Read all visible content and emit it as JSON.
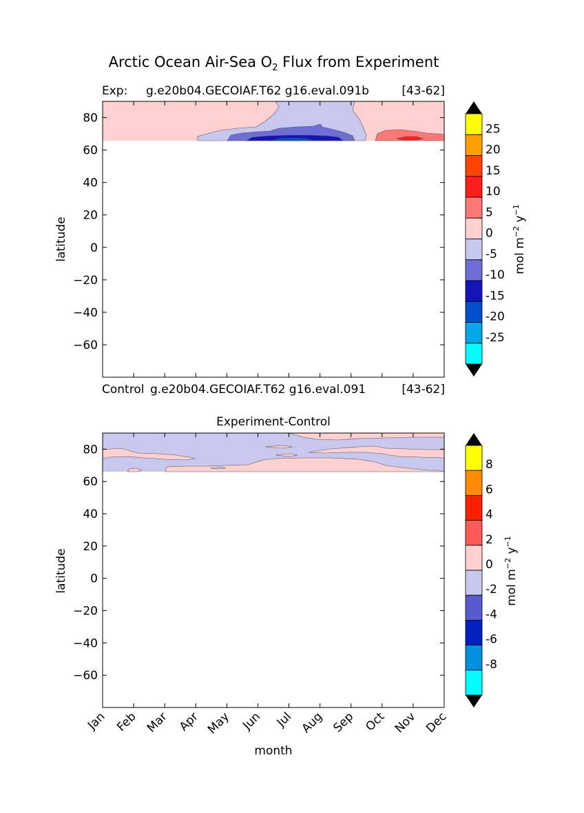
{
  "figure": {
    "title": "Arctic Ocean Air-Sea O",
    "title_sub": "2",
    "title_suffix": " Flux from Experiment"
  },
  "colors": {
    "exp_levels": [
      "#00ffff",
      "#00a8e8",
      "#0050cc",
      "#1414bb",
      "#6e6ed6",
      "#c8c8ee",
      "#ffd0d0",
      "#ff7878",
      "#ff1e1e",
      "#ff4400",
      "#ffa000",
      "#ffff00"
    ],
    "diff_levels": [
      "#00ffff",
      "#0090e0",
      "#0020c0",
      "#5a5ad0",
      "#c8c8ee",
      "#ffd0d0",
      "#ff5a5a",
      "#ff2000",
      "#ff8c00",
      "#ffff00"
    ],
    "extend": "#000000"
  },
  "chart_data": [
    {
      "type": "contourf",
      "panel": "top",
      "header_left": "Exp:",
      "header_center": "g.e20b04.GECOIAF.T62 g16.eval.091b",
      "header_right": "[43-62]",
      "footer_left": "Control",
      "footer_center": "g.e20b04.GECOIAF.T62 g16.eval.091",
      "footer_right": "[43-62]",
      "xlabel": "",
      "ylabel": "latitude",
      "ylim": [
        -80,
        90
      ],
      "yticks": [
        80,
        60,
        40,
        20,
        0,
        -20,
        -40,
        -60
      ],
      "xlim": [
        0,
        11
      ],
      "data_lat_range": [
        66,
        90
      ],
      "colorbar_label": "mol m",
      "colorbar_label_exp1": "−2",
      "colorbar_label_mid": " y",
      "colorbar_label_exp2": "−1",
      "colorbar_ticks": [
        "25",
        "20",
        "15",
        "10",
        "5",
        "0",
        "-5",
        "-10",
        "-15",
        "-20",
        "-25"
      ],
      "regions": [
        {
          "level": "-5 to 0",
          "x": [
            0,
            3.0
          ],
          "lat": [
            66,
            90
          ],
          "sign": "positive"
        },
        {
          "level": "-5 to 0",
          "x": [
            3.0,
            8.4
          ],
          "lat": [
            66,
            90
          ],
          "sign": "negative"
        },
        {
          "level": "-10 to -5",
          "x": [
            4.0,
            8.0
          ],
          "lat": [
            66,
            71
          ]
        },
        {
          "level": "-15 to -10",
          "x": [
            4.8,
            7.7
          ],
          "lat": [
            66,
            69
          ]
        },
        {
          "level": "-20 to -15",
          "x": [
            5.7,
            6.6
          ],
          "lat": [
            66,
            67.3
          ]
        },
        {
          "level": "5 to 10",
          "x": [
            9.0,
            11.0
          ],
          "lat": [
            66,
            72
          ]
        },
        {
          "level": "10 to 15",
          "x": [
            9.7,
            10.3
          ],
          "lat": [
            66,
            68
          ]
        }
      ]
    },
    {
      "type": "contourf",
      "panel": "bottom",
      "title": "Experiment-Control",
      "xlabel": "month",
      "ylabel": "latitude",
      "ylim": [
        -80,
        90
      ],
      "yticks": [
        80,
        60,
        40,
        20,
        0,
        -20,
        -40,
        -60
      ],
      "xticks": [
        "Jan",
        "Feb",
        "Mar",
        "Apr",
        "May",
        "Jun",
        "Jul",
        "Aug",
        "Sep",
        "Oct",
        "Nov",
        "Dec"
      ],
      "xlim": [
        0,
        11
      ],
      "data_lat_range": [
        66,
        90
      ],
      "colorbar_label": "mol m",
      "colorbar_label_exp1": "−2",
      "colorbar_label_mid": " y",
      "colorbar_label_exp2": "−1",
      "colorbar_ticks": [
        "8",
        "6",
        "4",
        "2",
        "0",
        "-2",
        "-4",
        "-6",
        "-8"
      ],
      "regions": [
        {
          "level": "-2 to 0",
          "x": [
            0,
            11
          ],
          "lat": [
            66,
            90
          ],
          "sign": "background"
        },
        {
          "level": "0 to 2",
          "x": [
            0,
            11
          ],
          "lat": [
            77,
            80
          ],
          "sign": "band"
        },
        {
          "level": "0 to 2",
          "x": [
            2.1,
            8.8
          ],
          "lat": [
            66,
            72
          ],
          "sign": "blob"
        },
        {
          "level": "0 to 2",
          "x": [
            6.0,
            11.0
          ],
          "lat": [
            86,
            90
          ],
          "sign": "blob"
        }
      ]
    }
  ]
}
